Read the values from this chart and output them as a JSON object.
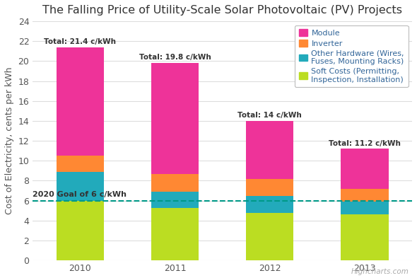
{
  "title": "The Falling Price of Utility-Scale Solar Photovoltaic (PV) Projects",
  "ylabel": "Cost of Electricity, cents per kWh",
  "years": [
    "2010",
    "2011",
    "2012",
    "2013"
  ],
  "totals": [
    "Total: 21.4 c/kWh",
    "Total: 19.8 c/kWh",
    "Total: 14 c/kWh",
    "Total: 11.2 c/kWh"
  ],
  "soft_costs": [
    6.0,
    5.3,
    4.8,
    4.6
  ],
  "other_hardware": [
    2.9,
    1.6,
    1.7,
    1.3
  ],
  "inverter": [
    1.6,
    1.8,
    1.7,
    1.3
  ],
  "module": [
    10.9,
    11.1,
    5.8,
    4.0
  ],
  "colors": {
    "module": "#EE3399",
    "inverter": "#FF8833",
    "other_hardware": "#22AABB",
    "soft_costs": "#BBDD22"
  },
  "goal_value": 6.0,
  "goal_label": "2020 Goal of 6 c/kWh",
  "goal_color": "#009988",
  "ylim": [
    0,
    24
  ],
  "yticks": [
    0,
    2,
    4,
    6,
    8,
    10,
    12,
    14,
    16,
    18,
    20,
    22,
    24
  ],
  "background_color": "#FFFFFF",
  "grid_color": "#DDDDDD",
  "title_fontsize": 11.5,
  "axis_label_fontsize": 9,
  "legend_fontsize": 8,
  "tick_fontsize": 9,
  "legend_labels": [
    "Module",
    "Inverter",
    "Other Hardware (Wires,\nFuses, Mounting Racks)",
    "Soft Costs (Permitting,\nInspection, Installation)"
  ],
  "watermark": "Highcharts.com",
  "bar_width": 0.5
}
